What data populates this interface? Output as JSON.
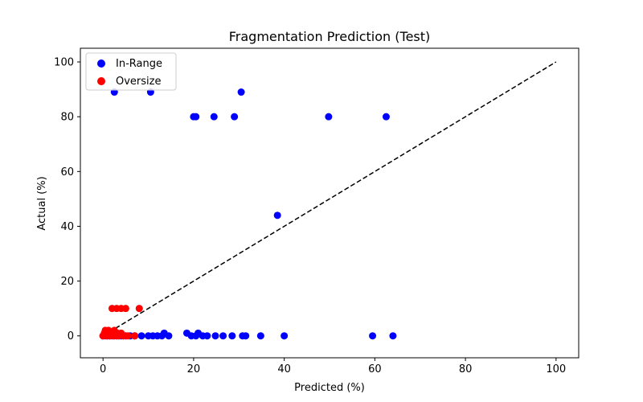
{
  "chart_data": {
    "type": "scatter",
    "title": "Fragmentation Prediction (Test)",
    "xlabel": "Predicted (%)",
    "ylabel": "Actual (%)",
    "xlim": [
      -5,
      105
    ],
    "ylim": [
      -8,
      105
    ],
    "xticks": [
      0,
      20,
      40,
      60,
      80,
      100
    ],
    "yticks": [
      0,
      20,
      40,
      60,
      80,
      100
    ],
    "grid": false,
    "legend_position": "top-left",
    "reference_line": {
      "x": [
        0,
        100
      ],
      "y": [
        0,
        100
      ],
      "style": "dashed",
      "color": "#000000"
    },
    "series": [
      {
        "name": "In-Range",
        "color": "#0000ff",
        "points": [
          [
            2.5,
            89
          ],
          [
            10.5,
            89
          ],
          [
            30.5,
            89
          ],
          [
            20,
            80
          ],
          [
            20.5,
            80
          ],
          [
            24.5,
            80
          ],
          [
            29,
            80
          ],
          [
            49.8,
            80
          ],
          [
            62.5,
            80
          ],
          [
            38.5,
            44
          ],
          [
            0,
            0
          ],
          [
            0.5,
            0
          ],
          [
            1,
            0
          ],
          [
            1.5,
            0
          ],
          [
            2,
            0
          ],
          [
            2.5,
            0
          ],
          [
            3,
            0
          ],
          [
            3.5,
            0
          ],
          [
            4,
            0
          ],
          [
            4.5,
            0
          ],
          [
            5,
            0
          ],
          [
            6,
            0
          ],
          [
            7,
            0
          ],
          [
            8.5,
            0
          ],
          [
            10,
            0
          ],
          [
            11,
            0
          ],
          [
            12,
            0
          ],
          [
            13,
            0
          ],
          [
            13.5,
            1
          ],
          [
            14.5,
            0
          ],
          [
            18.5,
            1
          ],
          [
            19.5,
            0
          ],
          [
            20.5,
            0
          ],
          [
            21,
            1
          ],
          [
            22,
            0
          ],
          [
            23,
            0
          ],
          [
            24.8,
            0
          ],
          [
            26.5,
            0
          ],
          [
            28.5,
            0
          ],
          [
            30.8,
            0
          ],
          [
            31.5,
            0
          ],
          [
            34.8,
            0
          ],
          [
            40,
            0
          ],
          [
            59.5,
            0
          ],
          [
            64,
            0
          ]
        ]
      },
      {
        "name": "Oversize",
        "color": "#ff0000",
        "points": [
          [
            2,
            10
          ],
          [
            3,
            10
          ],
          [
            4,
            10
          ],
          [
            5,
            10
          ],
          [
            8,
            10
          ],
          [
            0,
            0
          ],
          [
            0.3,
            1
          ],
          [
            0.5,
            2
          ],
          [
            0.8,
            0
          ],
          [
            1,
            1
          ],
          [
            1.2,
            2
          ],
          [
            1.5,
            0
          ],
          [
            2,
            1
          ],
          [
            2.3,
            0
          ],
          [
            2.5,
            2
          ],
          [
            3,
            0
          ],
          [
            3.2,
            1
          ],
          [
            3.5,
            0
          ],
          [
            4,
            1
          ],
          [
            4.5,
            0
          ],
          [
            5,
            0
          ],
          [
            5.5,
            0
          ],
          [
            7,
            0
          ]
        ]
      }
    ]
  }
}
